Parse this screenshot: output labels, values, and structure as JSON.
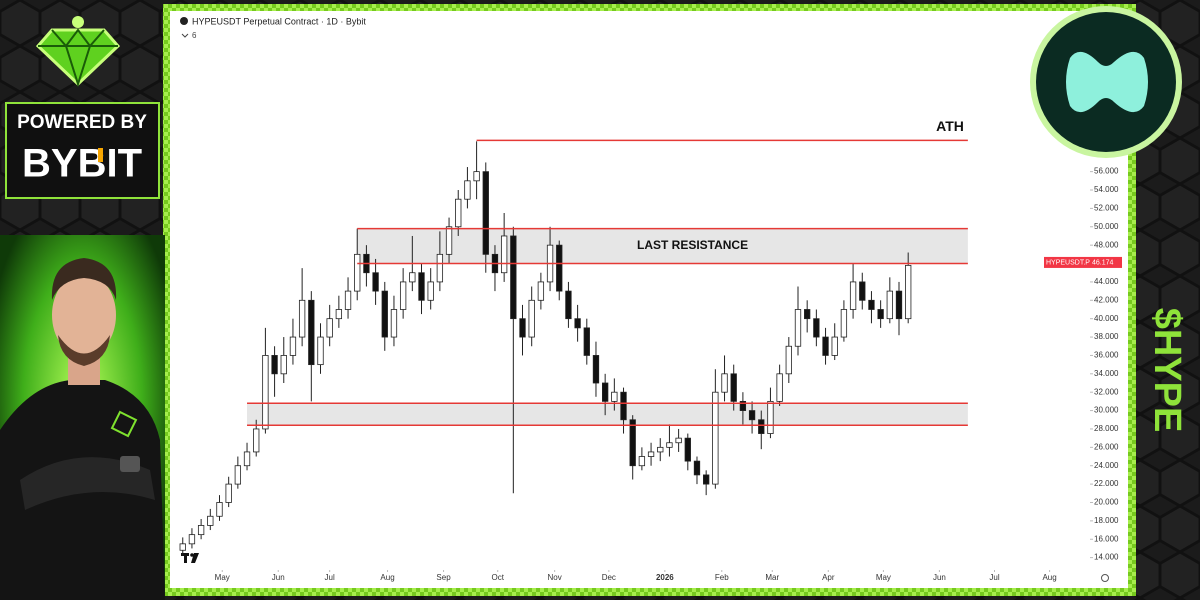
{
  "chart_data": {
    "type": "candlestick",
    "title": "HYPEUSDT Perpetual Contract · 1D · Bybit",
    "indicators": 6,
    "open": [
      14.8,
      15.5,
      16.5,
      17.5,
      18.5,
      20,
      22,
      24,
      25.5,
      28,
      36,
      34,
      36,
      38,
      42,
      35,
      38,
      40,
      41,
      43,
      47,
      45,
      43,
      38,
      41,
      44,
      45,
      42,
      44,
      47,
      50,
      53,
      55,
      56,
      47,
      45,
      49,
      40,
      38,
      42,
      44,
      48,
      43,
      40,
      39,
      36,
      33,
      31,
      32,
      29,
      24,
      25,
      25.5,
      26,
      26.5,
      27,
      24.5,
      23,
      22,
      32,
      34,
      31,
      30,
      29,
      27.5,
      31,
      34,
      37,
      41,
      40,
      38,
      36,
      38,
      41,
      44,
      42,
      41,
      40,
      43,
      40
    ],
    "high": [
      16.2,
      17.2,
      18.2,
      19.3,
      20.8,
      22.8,
      25,
      26.5,
      29,
      39,
      37,
      38,
      40,
      45.5,
      43,
      39.5,
      41.5,
      42.5,
      44.5,
      49.8,
      48,
      46.5,
      44,
      42.5,
      45.5,
      49,
      46,
      45.5,
      49.5,
      51,
      54,
      56.5,
      59.3,
      57,
      48,
      51.5,
      50,
      41.5,
      43.5,
      45,
      50,
      48.5,
      44,
      41.5,
      40,
      37.5,
      34,
      33.5,
      32.5,
      29.5,
      26,
      26.5,
      27,
      28.5,
      28,
      27.5,
      25,
      23.5,
      34.5,
      36,
      35,
      32,
      31,
      30,
      32.5,
      35,
      38,
      43.5,
      42,
      41,
      39,
      39.5,
      42,
      46,
      45,
      43,
      42,
      44.5,
      44,
      47.2
    ],
    "low": [
      14.2,
      15,
      16,
      17,
      18,
      19.5,
      21.5,
      23.5,
      25,
      27.5,
      31.5,
      33,
      35,
      37,
      31,
      34,
      37,
      39,
      40,
      42,
      43.5,
      41.5,
      36.5,
      37,
      40,
      43,
      40.5,
      41,
      43,
      46,
      49,
      52,
      53,
      45,
      43,
      44,
      21,
      36,
      37,
      41,
      43,
      42,
      39,
      37.5,
      35,
      31.5,
      29.5,
      30,
      27.5,
      22.5,
      23.5,
      24,
      24.5,
      25,
      25.5,
      23.5,
      22,
      20.8,
      21.5,
      31,
      30,
      28.5,
      27.5,
      25.8,
      27,
      30.5,
      33,
      36,
      38.5,
      37,
      35,
      35.5,
      37.5,
      40,
      41,
      39.5,
      39,
      39.5,
      38.2,
      39.5
    ],
    "close": [
      15.5,
      16.5,
      17.5,
      18.5,
      20,
      22,
      24,
      25.5,
      28,
      36,
      34,
      36,
      38,
      42,
      35,
      38,
      40,
      41,
      43,
      47,
      45,
      43,
      38,
      41,
      44,
      45,
      42,
      44,
      47,
      50,
      53,
      55,
      56,
      47,
      45,
      49,
      40,
      38,
      42,
      44,
      48,
      43,
      40,
      39,
      36,
      33,
      31,
      32,
      29,
      24,
      25,
      25.5,
      26,
      26.5,
      27,
      24.5,
      23,
      22,
      32,
      34,
      31,
      30,
      29,
      27.5,
      31,
      34,
      37,
      41,
      40,
      38,
      36,
      38,
      41,
      44,
      42,
      41,
      40,
      43,
      40,
      45.8
    ],
    "up_color": "#ffffff",
    "down_color": "#111111",
    "xlim": [
      -0.3,
      98.8
    ],
    "xticks": [
      {
        "value": 4.3,
        "label": "May"
      },
      {
        "value": 10.4,
        "label": "Jun"
      },
      {
        "value": 16.0,
        "label": "Jul"
      },
      {
        "value": 22.3,
        "label": "Aug"
      },
      {
        "value": 28.4,
        "label": "Sep"
      },
      {
        "value": 34.3,
        "label": "Oct"
      },
      {
        "value": 40.5,
        "label": "Nov"
      },
      {
        "value": 46.4,
        "label": "Dec"
      },
      {
        "value": 52.5,
        "label": "2026"
      },
      {
        "value": 58.7,
        "label": "Feb"
      },
      {
        "value": 64.2,
        "label": "Mar"
      },
      {
        "value": 70.3,
        "label": "Apr"
      },
      {
        "value": 76.3,
        "label": "May"
      },
      {
        "value": 82.4,
        "label": "Jun"
      },
      {
        "value": 88.4,
        "label": "Jul"
      },
      {
        "value": 94.4,
        "label": "Aug"
      }
    ],
    "ylim": [
      12,
      72.5
    ],
    "yticks": [
      {
        "value": 14,
        "label": "14.000"
      },
      {
        "value": 16,
        "label": "16.000"
      },
      {
        "value": 18,
        "label": "18.000"
      },
      {
        "value": 20,
        "label": "20.000"
      },
      {
        "value": 22,
        "label": "22.000"
      },
      {
        "value": 24,
        "label": "24.000"
      },
      {
        "value": 26,
        "label": "26.000"
      },
      {
        "value": 28,
        "label": "28.000"
      },
      {
        "value": 30,
        "label": "30.000"
      },
      {
        "value": 32,
        "label": "32.000"
      },
      {
        "value": 34,
        "label": "34.000"
      },
      {
        "value": 36,
        "label": "36.000"
      },
      {
        "value": 38,
        "label": "38.000"
      },
      {
        "value": 40,
        "label": "40.000"
      },
      {
        "value": 42,
        "label": "42.000"
      },
      {
        "value": 44,
        "label": "44.000"
      },
      {
        "value": 46,
        "label": "46.000"
      },
      {
        "value": 48,
        "label": "48.000"
      },
      {
        "value": 50,
        "label": "50.000"
      },
      {
        "value": 52,
        "label": "52.000"
      },
      {
        "value": 54,
        "label": "54.000"
      },
      {
        "value": 56,
        "label": "56.000"
      }
    ],
    "grid": false,
    "level_color": "#e53935",
    "zone_color": "#e6e6e6",
    "levels": [
      {
        "label": "ATH",
        "value": 59.4,
        "from": 32,
        "to": 85.5
      }
    ],
    "zones": [
      {
        "label": "LAST RESISTANCE",
        "top": 49.8,
        "bottom": 46,
        "from": 19,
        "to": 85.5
      },
      {
        "top": 30.8,
        "bottom": 28.4,
        "from": 7,
        "to": 85.5
      }
    ],
    "last_price": {
      "label": "HYPEUSDT.P",
      "value": 46.174,
      "color": "#f23645"
    }
  },
  "branding": {
    "powered_by": "POWERED BY",
    "sponsor": "BYBIT",
    "ticker": "$HYPE"
  }
}
